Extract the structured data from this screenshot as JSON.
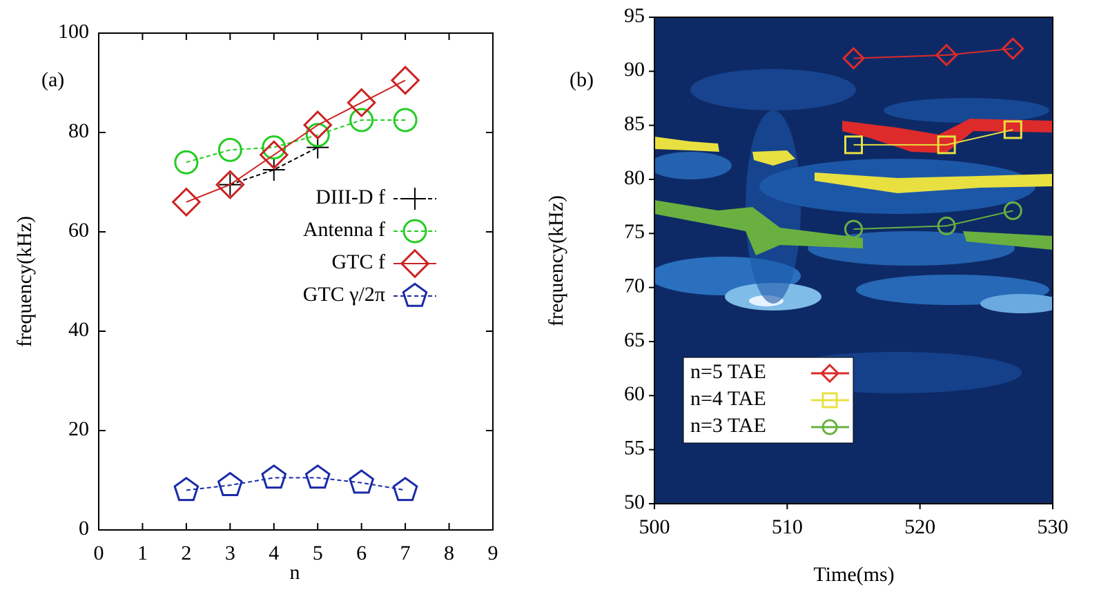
{
  "chart_data": [
    {
      "type": "line",
      "annotation": "(a)",
      "xlabel": "n",
      "ylabel": "frequency(kHz)",
      "xlim": [
        0,
        9
      ],
      "xticks": [
        0,
        1,
        2,
        3,
        4,
        5,
        6,
        7,
        8,
        9
      ],
      "ylim": [
        0,
        100
      ],
      "yticks": [
        0,
        20,
        40,
        60,
        80,
        100
      ],
      "series": [
        {
          "name": "DIII-D f",
          "color": "#000000",
          "marker": "plus",
          "linestyle": "dashed",
          "x": [
            3,
            4,
            5
          ],
          "values": [
            69.5,
            72.5,
            77
          ]
        },
        {
          "name": "Antenna f",
          "color": "#22cc22",
          "marker": "circle",
          "linestyle": "dashed",
          "x": [
            2,
            3,
            4,
            5,
            6,
            7
          ],
          "values": [
            74,
            76.5,
            77,
            79.5,
            82.5,
            82.5
          ]
        },
        {
          "name": "GTC f",
          "color": "#cc2222",
          "marker": "diamond",
          "linestyle": "solid",
          "x": [
            2,
            3,
            4,
            5,
            6,
            7
          ],
          "values": [
            66,
            69.5,
            75.5,
            81.5,
            86,
            90.5
          ]
        },
        {
          "name": "GTC γ/2π",
          "color": "#1a2aa8",
          "marker": "pentagon",
          "linestyle": "dashed",
          "x": [
            2,
            3,
            4,
            5,
            6,
            7
          ],
          "values": [
            8,
            9,
            10.5,
            10.5,
            9.5,
            8
          ]
        }
      ]
    },
    {
      "type": "line",
      "annotation": "(b)",
      "xlabel": "Time(ms)",
      "ylabel": "frequency(kHz)",
      "xlim": [
        500,
        530
      ],
      "xticks": [
        500,
        510,
        520,
        530
      ],
      "ylim": [
        50,
        95
      ],
      "yticks": [
        50,
        55,
        60,
        65,
        70,
        75,
        80,
        85,
        90,
        95
      ],
      "series": [
        {
          "name": "n=5 TAE",
          "color": "#dd2a2a",
          "marker": "diamond",
          "linestyle": "solid",
          "x": [
            515,
            522,
            527
          ],
          "values": [
            91.2,
            91.5,
            92.1
          ]
        },
        {
          "name": "n=4 TAE",
          "color": "#e8e040",
          "marker": "square",
          "linestyle": "solid",
          "x": [
            515,
            522,
            527
          ],
          "values": [
            83.2,
            83.2,
            84.6
          ]
        },
        {
          "name": "n=3 TAE",
          "color": "#6ab040",
          "marker": "circle",
          "linestyle": "solid",
          "x": [
            515,
            522,
            527
          ],
          "values": [
            75.4,
            75.7,
            77.1
          ]
        }
      ]
    }
  ]
}
